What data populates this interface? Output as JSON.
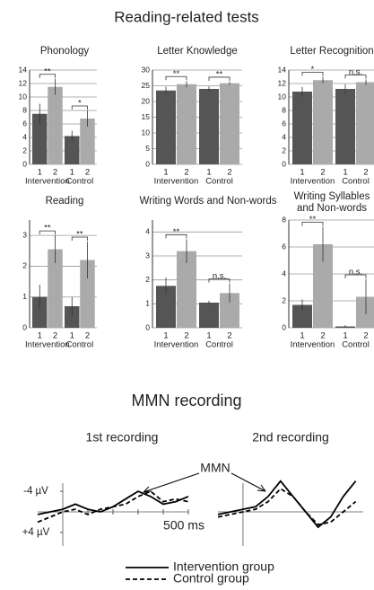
{
  "title": "Reading-related tests",
  "section_title": "MMN recording",
  "annotation": "MMN",
  "chart_data": [
    {
      "type": "bar",
      "title": "Phonology",
      "categories": [
        "1",
        "2",
        "1",
        "2"
      ],
      "groups": [
        "Intervention",
        "Control"
      ],
      "values": [
        7.5,
        11.5,
        4.2,
        6.8
      ],
      "errors": [
        1.5,
        1.2,
        0.8,
        1.2
      ],
      "colors": [
        "#555555",
        "#aaaaaa",
        "#555555",
        "#aaaaaa"
      ],
      "ylim": [
        0,
        14
      ],
      "yticks": [
        0,
        2,
        4,
        6,
        8,
        10,
        12,
        14
      ],
      "grid": true,
      "annotations": [
        "**",
        "*"
      ]
    },
    {
      "type": "bar",
      "title": "Letter Knowledge",
      "categories": [
        "1",
        "2",
        "1",
        "2"
      ],
      "groups": [
        "Intervention",
        "Control"
      ],
      "values": [
        23.5,
        25.5,
        24,
        25.8
      ],
      "errors": [
        1.2,
        1,
        0.8,
        0.5
      ],
      "colors": [
        "#555555",
        "#aaaaaa",
        "#555555",
        "#aaaaaa"
      ],
      "ylim": [
        0,
        30
      ],
      "yticks": [
        0,
        5,
        10,
        15,
        20,
        25,
        30
      ],
      "grid": true,
      "annotations": [
        "**",
        "**"
      ]
    },
    {
      "type": "bar",
      "title": "Letter Recognition",
      "categories": [
        "1",
        "2",
        "1",
        "2"
      ],
      "groups": [
        "Intervention",
        "Control"
      ],
      "values": [
        10.8,
        12.5,
        11.2,
        12.2
      ],
      "errors": [
        0.7,
        0.5,
        0.7,
        0.4
      ],
      "colors": [
        "#555555",
        "#aaaaaa",
        "#555555",
        "#aaaaaa"
      ],
      "ylim": [
        0,
        14
      ],
      "yticks": [
        0,
        2,
        4,
        6,
        8,
        10,
        12,
        14
      ],
      "grid": true,
      "annotations": [
        "*",
        "n.s."
      ]
    },
    {
      "type": "bar",
      "title": "Reading",
      "categories": [
        "1",
        "2",
        "1",
        "2"
      ],
      "groups": [
        "Intervention",
        "Control"
      ],
      "values": [
        1.0,
        2.55,
        0.7,
        2.2
      ],
      "errors": [
        0.4,
        0.45,
        0.3,
        0.6
      ],
      "colors": [
        "#555555",
        "#aaaaaa",
        "#555555",
        "#aaaaaa"
      ],
      "ylim": [
        0,
        3.5
      ],
      "yticks": [
        0,
        1,
        2,
        3
      ],
      "grid": true,
      "annotations": [
        "**",
        "**"
      ]
    },
    {
      "type": "bar",
      "title": "Writing Words and Non-words",
      "categories": [
        "1",
        "2",
        "1",
        "2"
      ],
      "groups": [
        "Intervention",
        "Control"
      ],
      "values": [
        1.75,
        3.2,
        1.05,
        1.45
      ],
      "errors": [
        0.35,
        0.5,
        0.08,
        0.4
      ],
      "colors": [
        "#555555",
        "#aaaaaa",
        "#555555",
        "#aaaaaa"
      ],
      "ylim": [
        0,
        4.5
      ],
      "yticks": [
        0,
        1,
        2,
        3,
        4
      ],
      "grid": true,
      "annotations": [
        "**",
        "n.s."
      ]
    },
    {
      "type": "bar",
      "title": [
        "Writing Syllables",
        "and Non-words"
      ],
      "categories": [
        "1",
        "2",
        "1",
        "2"
      ],
      "groups": [
        "Intervention",
        "Control"
      ],
      "values": [
        1.7,
        6.2,
        0.1,
        2.3
      ],
      "errors": [
        0.4,
        1.3,
        0.1,
        1.3
      ],
      "colors": [
        "#555555",
        "#aaaaaa",
        "#555555",
        "#aaaaaa"
      ],
      "ylim": [
        0,
        8
      ],
      "yticks": [
        0,
        2,
        4,
        6,
        8
      ],
      "grid": true,
      "annotations": [
        "**",
        "n.s."
      ]
    },
    {
      "type": "line",
      "title": "1st recording",
      "x": [
        -100,
        -50,
        0,
        50,
        100,
        150,
        200,
        250,
        300,
        350,
        400,
        450,
        500
      ],
      "xlim": [
        -100,
        500
      ],
      "xticks": [
        {
          "value": 500,
          "label": "500 ms"
        }
      ],
      "minor_xticks": [
        100,
        200,
        300,
        400
      ],
      "ylim": [
        7,
        -7
      ],
      "yticks": [
        {
          "value": -4,
          "label": "-4 µV"
        },
        {
          "value": 4,
          "label": "+4 µV"
        }
      ],
      "series": [
        {
          "name": "Intervention group",
          "color": "#000000",
          "dash": "solid",
          "values": [
            0.5,
            0,
            -0.5,
            -1.5,
            -0.5,
            0,
            -1,
            -2.5,
            -4,
            -3,
            -1.5,
            -2,
            -3
          ]
        },
        {
          "name": "Control group",
          "color": "#000000",
          "dash": "dashed",
          "values": [
            2,
            1,
            0,
            -0.5,
            0.5,
            -0.5,
            -1,
            -1.5,
            -3,
            -4,
            -2,
            -2.5,
            -2
          ]
        }
      ]
    },
    {
      "type": "line",
      "title": "2nd recording",
      "x": [
        -100,
        -50,
        0,
        50,
        100,
        150,
        200,
        250,
        300,
        350,
        400,
        450
      ],
      "xlim": [
        -100,
        480
      ],
      "ylim": [
        7,
        -7
      ],
      "series": [
        {
          "name": "Intervention group",
          "color": "#000000",
          "dash": "solid",
          "values": [
            0.5,
            0,
            -0.5,
            -1,
            -3,
            -6,
            -3,
            0,
            3,
            1,
            -3,
            -6
          ]
        },
        {
          "name": "Control group",
          "color": "#000000",
          "dash": "dashed",
          "values": [
            1,
            0.5,
            0,
            -0.5,
            -2,
            -4.5,
            -3,
            0,
            2.5,
            2,
            0,
            -2
          ]
        }
      ]
    }
  ]
}
